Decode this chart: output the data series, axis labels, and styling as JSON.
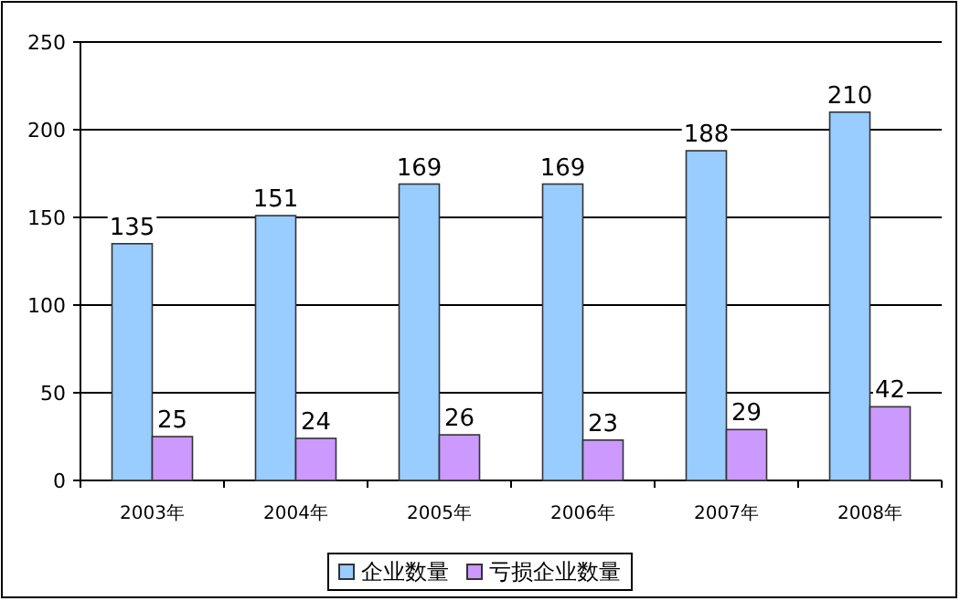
{
  "chart_data": {
    "type": "bar",
    "categories": [
      "2003年",
      "2004年",
      "2005年",
      "2006年",
      "2007年",
      "2008年"
    ],
    "series": [
      {
        "name": "企业数量",
        "color": "#99ccff",
        "values": [
          135,
          151,
          169,
          169,
          188,
          210
        ]
      },
      {
        "name": "亏损企业数量",
        "color": "#cc99ff",
        "values": [
          25,
          24,
          26,
          23,
          29,
          42
        ]
      }
    ],
    "ylim": [
      0,
      250
    ],
    "yticks": [
      0,
      50,
      100,
      150,
      200,
      250
    ],
    "grid": "y",
    "legend": "bottom",
    "data_labels": true
  }
}
